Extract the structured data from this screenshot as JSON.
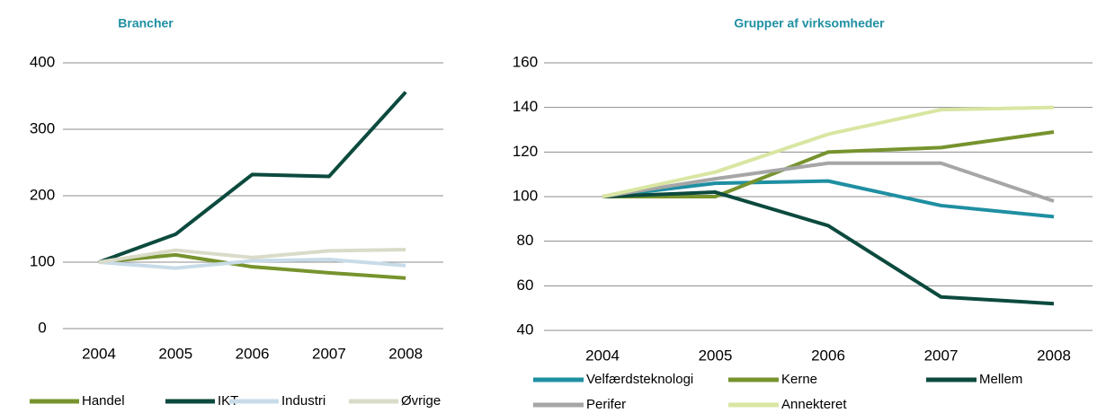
{
  "chart_data": [
    {
      "type": "line",
      "title": "Brancher",
      "categories": [
        "2004",
        "2005",
        "2006",
        "2007",
        "2008"
      ],
      "series": [
        {
          "name": "Handel",
          "color": "#77932e",
          "values": [
            100,
            111,
            93,
            84,
            76
          ]
        },
        {
          "name": "IKT",
          "color": "#0c4a3e",
          "values": [
            100,
            142,
            232,
            229,
            356
          ]
        },
        {
          "name": "Industri",
          "color": "#c8dbe8",
          "values": [
            100,
            91,
            102,
            104,
            95
          ]
        },
        {
          "name": "Øvrige",
          "color": "#dadbc8",
          "values": [
            100,
            118,
            107,
            117,
            119
          ]
        }
      ],
      "ylim": [
        0,
        400
      ],
      "yticks": [
        0,
        100,
        200,
        300,
        400
      ],
      "grid": true
    },
    {
      "type": "line",
      "title": "Grupper af virksomheder",
      "categories": [
        "2004",
        "2005",
        "2006",
        "2007",
        "2008"
      ],
      "series": [
        {
          "name": "Velfærdsteknologi",
          "color": "#1f8fa2",
          "values": [
            100,
            106,
            107,
            96,
            91
          ]
        },
        {
          "name": "Kerne",
          "color": "#77932e",
          "values": [
            100,
            100,
            120,
            122,
            129
          ]
        },
        {
          "name": "Mellem",
          "color": "#0c4a3e",
          "values": [
            100,
            102,
            87,
            55,
            52
          ]
        },
        {
          "name": "Perifer",
          "color": "#a6a6a6",
          "values": [
            100,
            108,
            115,
            115,
            98
          ]
        },
        {
          "name": "Annekteret",
          "color": "#d8e6a2",
          "values": [
            100,
            111,
            128,
            139,
            140
          ]
        }
      ],
      "ylim": [
        40,
        160
      ],
      "yticks": [
        40,
        60,
        80,
        100,
        120,
        140,
        160
      ],
      "grid": true
    }
  ]
}
